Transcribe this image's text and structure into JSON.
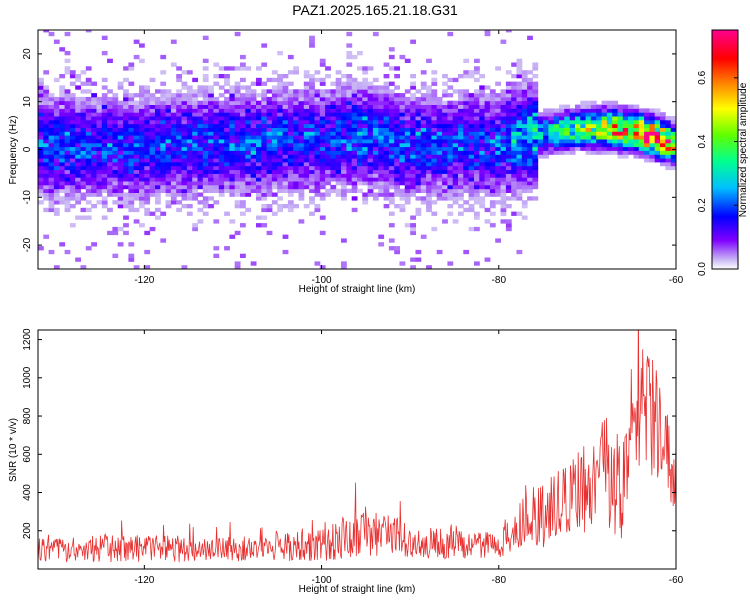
{
  "title": "PAZ1.2025.165.21.18.G31",
  "colors": {
    "snr_line": "#e83030",
    "colormap": [
      "#ffffff",
      "#c8b4f4",
      "#7f00ff",
      "#0000ff",
      "#00c0ff",
      "#00ff90",
      "#60ff00",
      "#ffff00",
      "#ff8000",
      "#ff0000",
      "#ff0090"
    ]
  },
  "chart_data": [
    {
      "type": "heatmap",
      "title": "",
      "xlabel": "Height of straight line (km)",
      "ylabel": "Frequency (Hz)",
      "xlim": [
        -132,
        -60
      ],
      "ylim": [
        -25,
        25
      ],
      "xticks": [
        -120,
        -100,
        -80,
        -60
      ],
      "xtick_labels": [
        "-120",
        "-100",
        "-80",
        "-60"
      ],
      "yticks": [
        -20,
        -10,
        0,
        10,
        20
      ],
      "ytick_labels": [
        "-20",
        "-10",
        "0",
        "10",
        "20"
      ],
      "grid": false,
      "colorbar": {
        "label": "Normalized spectral amplitude",
        "range": [
          0,
          0.75
        ],
        "ticks": [
          0,
          0.2,
          0.4,
          0.6
        ],
        "tick_labels": [
          "0.0",
          "0.2",
          "0.4",
          "0.6"
        ]
      },
      "ridge": {
        "x": [
          -132,
          -125,
          -120,
          -115,
          -110,
          -105,
          -100,
          -95,
          -90,
          -85,
          -80,
          -76,
          -73,
          -70,
          -67,
          -64,
          -62,
          -60
        ],
        "freq": [
          1,
          0.5,
          0.5,
          1,
          1.5,
          2,
          2,
          3,
          1,
          1,
          1,
          3,
          4,
          4.5,
          4.5,
          3.5,
          2.5,
          1
        ],
        "amplitude": [
          0.15,
          0.15,
          0.15,
          0.15,
          0.15,
          0.15,
          0.15,
          0.17,
          0.15,
          0.14,
          0.15,
          0.25,
          0.35,
          0.42,
          0.55,
          0.65,
          0.7,
          0.5
        ]
      }
    },
    {
      "type": "line",
      "title": "",
      "xlabel": "Height of straight line (km)",
      "ylabel": "SNR (10 * v/v)",
      "xlim": [
        -132,
        -60
      ],
      "ylim": [
        0,
        1250
      ],
      "xticks": [
        -120,
        -100,
        -80,
        -60
      ],
      "xtick_labels": [
        "-120",
        "-100",
        "-80",
        "-60"
      ],
      "yticks": [
        200,
        400,
        600,
        800,
        1000,
        1200
      ],
      "ytick_labels": [
        "200",
        "400",
        "600",
        "800",
        "1000",
        "1200"
      ],
      "grid": false,
      "envelope": {
        "x": [
          -132,
          -125,
          -120,
          -115,
          -110,
          -105,
          -100,
          -97,
          -95,
          -92,
          -90,
          -85,
          -80,
          -78,
          -77,
          -76,
          -74,
          -72,
          -70,
          -68,
          -67,
          -66,
          -65,
          -64,
          -63,
          -62,
          -61,
          -60
        ],
        "mean": [
          100,
          105,
          110,
          100,
          105,
          115,
          120,
          170,
          190,
          180,
          140,
          130,
          120,
          180,
          330,
          250,
          300,
          380,
          420,
          520,
          450,
          400,
          750,
          900,
          800,
          780,
          600,
          500
        ],
        "spread": [
          60,
          70,
          75,
          65,
          65,
          75,
          85,
          120,
          140,
          110,
          85,
          80,
          70,
          120,
          200,
          170,
          200,
          220,
          250,
          280,
          300,
          250,
          350,
          350,
          300,
          320,
          220,
          200
        ]
      }
    }
  ]
}
